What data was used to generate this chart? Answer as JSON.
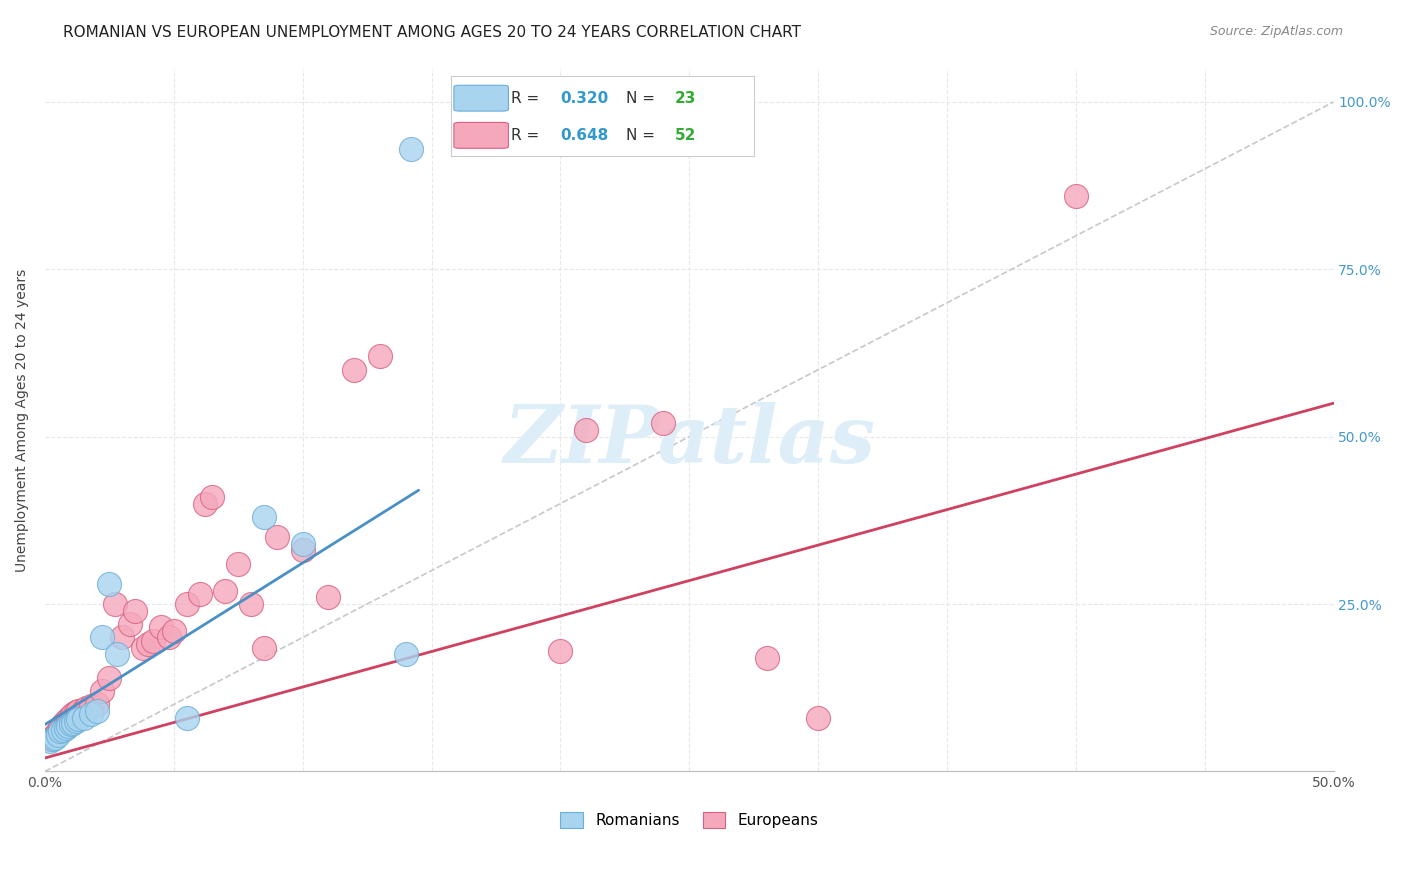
{
  "title": "ROMANIAN VS EUROPEAN UNEMPLOYMENT AMONG AGES 20 TO 24 YEARS CORRELATION CHART",
  "source": "Source: ZipAtlas.com",
  "ylabel": "Unemployment Among Ages 20 to 24 years",
  "yticks": [
    0.0,
    0.25,
    0.5,
    0.75,
    1.0
  ],
  "ytick_labels": [
    "",
    "25.0%",
    "50.0%",
    "75.0%",
    "100.0%"
  ],
  "xticks": [
    0.0,
    0.05,
    0.1,
    0.15,
    0.2,
    0.25,
    0.3,
    0.35,
    0.4,
    0.45,
    0.5
  ],
  "xlim": [
    0.0,
    0.5
  ],
  "ylim": [
    0.0,
    1.05
  ],
  "romanians_x": [
    0.002,
    0.003,
    0.004,
    0.005,
    0.006,
    0.007,
    0.008,
    0.009,
    0.01,
    0.011,
    0.012,
    0.013,
    0.015,
    0.018,
    0.02,
    0.022,
    0.025,
    0.028,
    0.055,
    0.085,
    0.1,
    0.14,
    0.142
  ],
  "romanians_y": [
    0.045,
    0.048,
    0.05,
    0.055,
    0.06,
    0.062,
    0.065,
    0.068,
    0.07,
    0.072,
    0.075,
    0.078,
    0.08,
    0.085,
    0.09,
    0.2,
    0.28,
    0.175,
    0.08,
    0.38,
    0.34,
    0.175,
    0.93
  ],
  "europeans_x": [
    0.002,
    0.003,
    0.004,
    0.005,
    0.005,
    0.006,
    0.006,
    0.007,
    0.007,
    0.008,
    0.008,
    0.009,
    0.01,
    0.01,
    0.011,
    0.012,
    0.013,
    0.015,
    0.016,
    0.018,
    0.02,
    0.022,
    0.025,
    0.027,
    0.03,
    0.033,
    0.035,
    0.038,
    0.04,
    0.042,
    0.045,
    0.048,
    0.05,
    0.055,
    0.06,
    0.062,
    0.065,
    0.07,
    0.075,
    0.08,
    0.085,
    0.09,
    0.1,
    0.11,
    0.12,
    0.13,
    0.2,
    0.21,
    0.24,
    0.28,
    0.3,
    0.4
  ],
  "europeans_y": [
    0.048,
    0.05,
    0.055,
    0.058,
    0.06,
    0.062,
    0.065,
    0.068,
    0.07,
    0.072,
    0.075,
    0.078,
    0.08,
    0.082,
    0.085,
    0.088,
    0.09,
    0.092,
    0.095,
    0.098,
    0.1,
    0.12,
    0.14,
    0.25,
    0.2,
    0.22,
    0.24,
    0.185,
    0.19,
    0.195,
    0.215,
    0.2,
    0.21,
    0.25,
    0.265,
    0.4,
    0.41,
    0.27,
    0.31,
    0.25,
    0.185,
    0.35,
    0.33,
    0.26,
    0.6,
    0.62,
    0.18,
    0.51,
    0.52,
    0.17,
    0.08,
    0.86
  ],
  "romanian_reg_line": {
    "x0": 0.0,
    "y0": 0.07,
    "x1": 0.145,
    "y1": 0.42
  },
  "european_reg_line": {
    "x0": 0.0,
    "y0": 0.02,
    "x1": 0.5,
    "y1": 0.55
  },
  "ref_diag_line": {
    "x0": 0.0,
    "y0": 0.0,
    "x1": 0.5,
    "y1": 1.0
  },
  "scatter_color_romanian": "#a8d4f0",
  "scatter_color_european": "#f5a8bc",
  "scatter_edge_romanian": "#6baed6",
  "scatter_edge_european": "#d96080",
  "reg_color_romanian": "#4a90c4",
  "reg_color_european": "#d04060",
  "ref_color": "#c8c8c8",
  "grid_color": "#e8e8e8",
  "title_color": "#222222",
  "source_color": "#888888",
  "axis_label_color": "#444444",
  "right_tick_color": "#4499cc",
  "background_color": "#ffffff",
  "watermark_text": "ZIPatlas",
  "watermark_color": "#ddeef8",
  "legend_R_color": "#3399cc",
  "legend_N_color": "#33aa33",
  "legend_text_color": "#333333"
}
